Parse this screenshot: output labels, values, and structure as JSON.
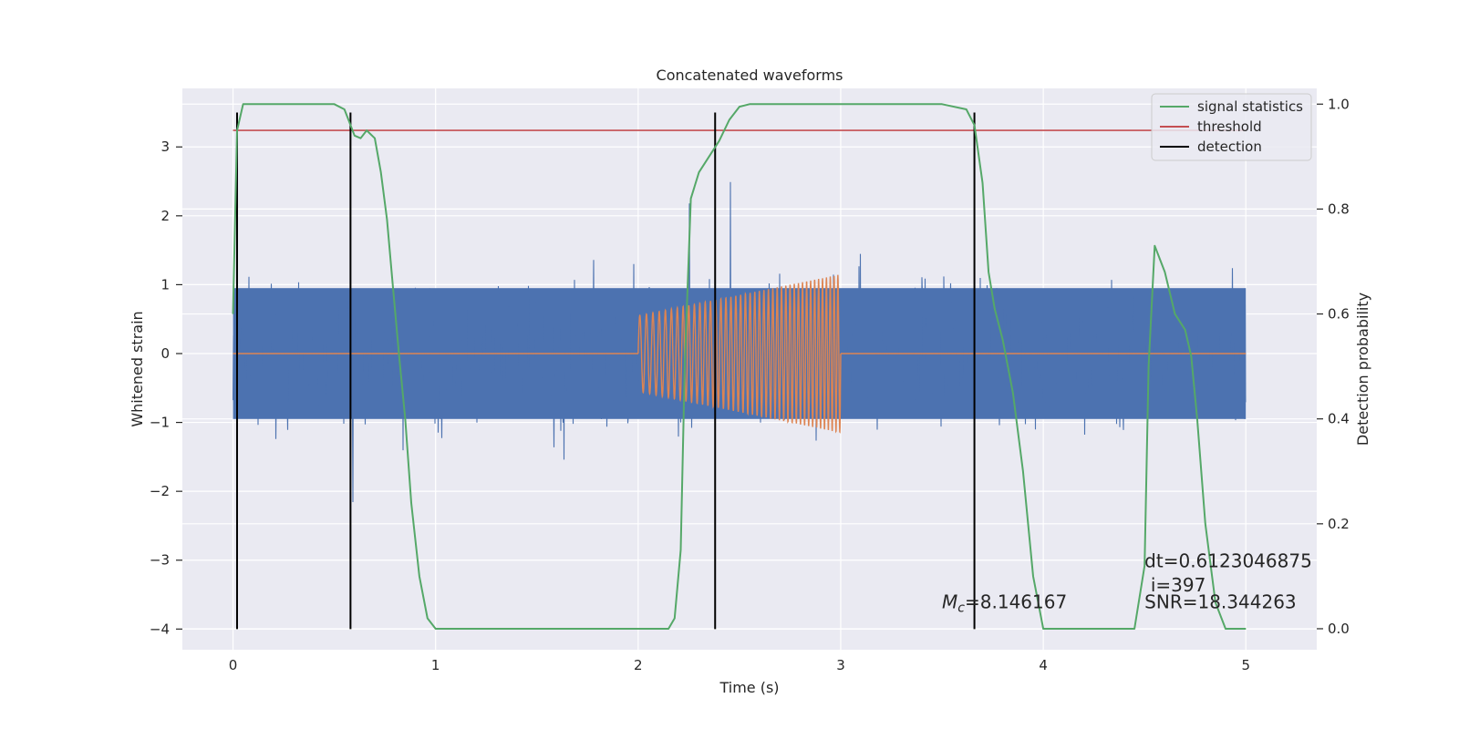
{
  "chart_data": {
    "type": "line",
    "title": "Concatenated waveforms",
    "xlabel": "Time (s)",
    "ylabel": "Whitened strain",
    "y2label": "Detection probability",
    "xlim": [
      -0.25,
      5.35
    ],
    "ylim": [
      -4.3,
      3.85
    ],
    "y2lim": [
      -0.04,
      1.03
    ],
    "x_ticks": [
      0,
      1,
      2,
      3,
      4,
      5
    ],
    "y_ticks": [
      -4,
      -3,
      -2,
      -1,
      0,
      1,
      2,
      3
    ],
    "y2_ticks": [
      0.0,
      0.2,
      0.4,
      0.6,
      0.8,
      1.0
    ],
    "grid": true,
    "legend_position": "top-right",
    "colors": {
      "strain": "#4c72b0",
      "template": "#dd8452",
      "signal_statistics": "#55a868",
      "threshold": "#c44e52",
      "detection": "#000000",
      "background": "#eaeaf2",
      "grid": "#ffffff"
    },
    "series": [
      {
        "name": "signal statistics",
        "axis": "right",
        "x": [
          0.0,
          0.02,
          0.05,
          0.1,
          0.2,
          0.5,
          0.55,
          0.58,
          0.6,
          0.63,
          0.66,
          0.7,
          0.73,
          0.76,
          0.79,
          0.82,
          0.85,
          0.88,
          0.92,
          0.96,
          1.0,
          1.5,
          2.0,
          2.15,
          2.18,
          2.21,
          2.23,
          2.26,
          2.3,
          2.35,
          2.4,
          2.45,
          2.5,
          2.55,
          3.0,
          3.5,
          3.62,
          3.66,
          3.7,
          3.73,
          3.76,
          3.8,
          3.85,
          3.9,
          3.95,
          4.0,
          4.1,
          4.45,
          4.5,
          4.52,
          4.55,
          4.6,
          4.65,
          4.7,
          4.73,
          4.76,
          4.8,
          4.85,
          4.9,
          4.95,
          5.0
        ],
        "values": [
          0.6,
          0.95,
          1.0,
          1.0,
          1.0,
          1.0,
          0.99,
          0.96,
          0.94,
          0.935,
          0.95,
          0.935,
          0.87,
          0.78,
          0.65,
          0.52,
          0.4,
          0.24,
          0.1,
          0.02,
          0.0,
          0.0,
          0.0,
          0.0,
          0.02,
          0.15,
          0.5,
          0.82,
          0.87,
          0.9,
          0.93,
          0.97,
          0.995,
          1.0,
          1.0,
          1.0,
          0.99,
          0.96,
          0.85,
          0.68,
          0.61,
          0.55,
          0.45,
          0.3,
          0.1,
          0.0,
          0.0,
          0.0,
          0.12,
          0.5,
          0.73,
          0.68,
          0.6,
          0.57,
          0.52,
          0.4,
          0.2,
          0.05,
          0.0,
          0.0,
          0.0
        ]
      },
      {
        "name": "threshold",
        "axis": "right",
        "x": [
          0.0,
          5.0
        ],
        "values": [
          0.95,
          0.95
        ]
      },
      {
        "name": "detection",
        "axis": "left",
        "x": [
          0.02,
          0.58,
          2.38,
          3.66
        ],
        "ymin": -4.0,
        "ymax": 3.5
      }
    ],
    "noise": {
      "x_range": [
        0.0,
        5.0
      ],
      "typical_band": [
        -0.95,
        0.95
      ],
      "peak_extremes": [
        -3.95,
        3.45
      ]
    },
    "template": {
      "x_range": [
        2.0,
        3.0
      ],
      "amplitude_start": 0.55,
      "amplitude_end": 1.15
    },
    "annotations": [
      {
        "text": "dt=0.6123046875",
        "x": 4.5,
        "y": -3.1
      },
      {
        "text": "i=397",
        "x": 4.53,
        "y": -3.45
      },
      {
        "text": "SNR=18.344263",
        "x": 4.5,
        "y": -3.7
      },
      {
        "text": "=8.146167",
        "prefix": "M",
        "sub": "c",
        "x": 3.5,
        "y": -3.7
      }
    ]
  }
}
